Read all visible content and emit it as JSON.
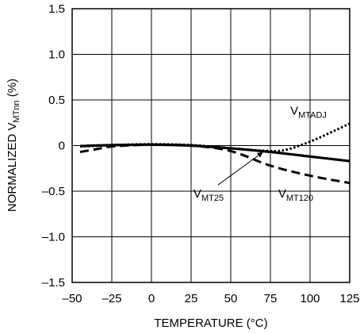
{
  "chart_data": {
    "type": "line",
    "xlabel": "TEMPERATURE (°C)",
    "ylabel_main": "NORMALIZED V",
    "ylabel_sub": "MTnn",
    "ylabel_suffix": " (%)",
    "xlim": [
      -50,
      125
    ],
    "ylim": [
      -1.5,
      1.5
    ],
    "xticks": [
      -50,
      -25,
      0,
      25,
      50,
      75,
      100,
      125
    ],
    "yticks": [
      -1.5,
      -1.0,
      -0.5,
      0,
      0.5,
      1.0,
      1.5
    ],
    "xtick_labels": [
      "–50",
      "–25",
      "0",
      "25",
      "50",
      "75",
      "100",
      "125"
    ],
    "ytick_labels": [
      "–1.5",
      "–1.0",
      "–0.5",
      "0",
      "0.5",
      "1.0",
      "1.5"
    ],
    "grid": true,
    "series": [
      {
        "name": "VMT25",
        "label_main": "V",
        "label_sub": "MT25",
        "style": "solid",
        "x": [
          -45,
          -25,
          0,
          25,
          50,
          75,
          100,
          125
        ],
        "y": [
          -0.005,
          0.005,
          0.01,
          0.0,
          -0.03,
          -0.07,
          -0.12,
          -0.17
        ]
      },
      {
        "name": "VMTADJ",
        "label_main": "V",
        "label_sub": "MTADJ",
        "style": "dotted",
        "x": [
          -45,
          -25,
          0,
          25,
          50,
          75,
          85,
          95,
          105,
          115,
          125
        ],
        "y": [
          -0.01,
          0.005,
          0.015,
          0.005,
          -0.03,
          -0.06,
          -0.045,
          0.01,
          0.08,
          0.16,
          0.24
        ]
      },
      {
        "name": "VMT120",
        "label_main": "V",
        "label_sub": "MT120",
        "style": "dashed",
        "x": [
          -45,
          -35,
          -25,
          -10,
          0,
          25,
          50,
          75,
          100,
          125
        ],
        "y": [
          -0.07,
          -0.04,
          -0.01,
          0.005,
          0.01,
          0.0,
          -0.06,
          -0.22,
          -0.33,
          -0.41
        ]
      }
    ],
    "annotations": [
      {
        "series": "VMTADJ",
        "text_x": 99,
        "text_y": 0.34,
        "arrow": false
      },
      {
        "series": "VMT25",
        "text_x": 36,
        "text_y": -0.57,
        "arrow": true,
        "arrow_to_x": 70,
        "arrow_to_y": -0.075
      },
      {
        "series": "VMT120",
        "text_x": 91,
        "text_y": -0.57,
        "arrow": false
      }
    ]
  }
}
